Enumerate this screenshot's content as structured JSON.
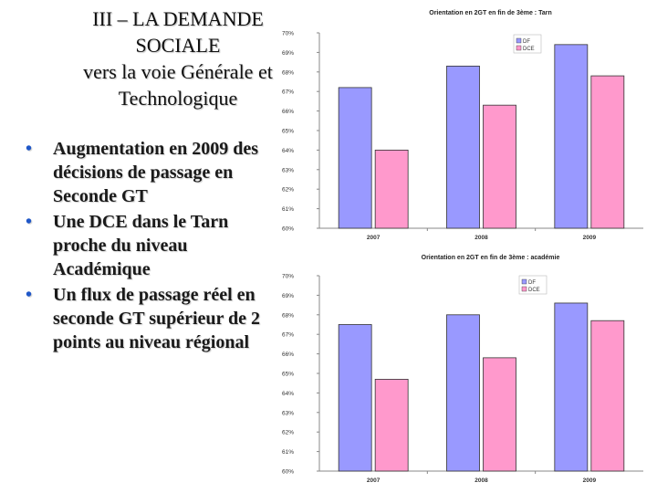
{
  "slide": {
    "title_lines": [
      "III – LA DEMANDE",
      "SOCIALE",
      "vers la voie Générale et",
      "Technologique"
    ],
    "bullets": [
      "Augmentation en 2009 des décisions de passage en Seconde GT",
      "Une DCE dans le Tarn proche du niveau Académique",
      "Un flux de passage réel en seconde GT supérieur de 2 points au niveau régional"
    ],
    "bullet_glyph": "•",
    "bullet_color": "#1f57c8"
  },
  "colors": {
    "DF": "#9999ff",
    "DCE": "#ff99cc"
  },
  "chart_data": [
    {
      "type": "bar",
      "title": "Orientation en 2GT en fin de 3ème : Tarn",
      "categories": [
        "2007",
        "2008",
        "2009"
      ],
      "series": [
        {
          "name": "DF",
          "values": [
            67.2,
            68.3,
            69.4
          ]
        },
        {
          "name": "DCE",
          "values": [
            64.0,
            66.3,
            67.8
          ]
        }
      ],
      "ylim": [
        60,
        70
      ],
      "yticks": [
        "60%",
        "61%",
        "62%",
        "63%",
        "64%",
        "65%",
        "66%",
        "67%",
        "68%",
        "69%",
        "70%"
      ],
      "legend": "top-right",
      "grid": false
    },
    {
      "type": "bar",
      "title": "Orientation en 2GT en fin de 3ème : académie",
      "categories": [
        "2007",
        "2008",
        "2009"
      ],
      "series": [
        {
          "name": "DF",
          "values": [
            67.5,
            68.0,
            68.6
          ]
        },
        {
          "name": "DCE",
          "values": [
            64.7,
            65.8,
            67.7
          ]
        }
      ],
      "ylim": [
        60,
        70
      ],
      "yticks": [
        "60%",
        "61%",
        "62%",
        "63%",
        "64%",
        "65%",
        "66%",
        "67%",
        "68%",
        "69%",
        "70%"
      ],
      "legend": "top-right",
      "grid": false
    }
  ]
}
